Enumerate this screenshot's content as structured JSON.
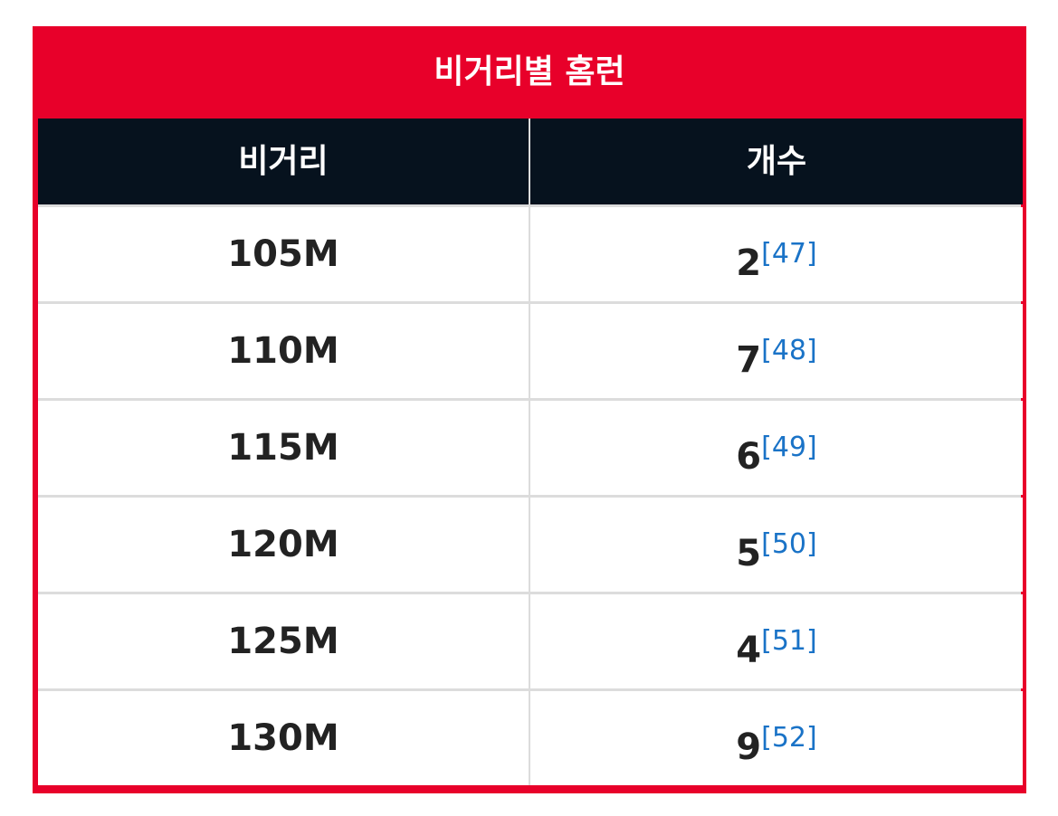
{
  "table": {
    "title": "비거리별 홈런",
    "headers": [
      "비거리",
      "개수"
    ],
    "rows": [
      {
        "distance": "105M",
        "count": "2",
        "ref": "[47]"
      },
      {
        "distance": "110M",
        "count": "7",
        "ref": "[48]"
      },
      {
        "distance": "115M",
        "count": "6",
        "ref": "[49]"
      },
      {
        "distance": "120M",
        "count": "5",
        "ref": "[50]"
      },
      {
        "distance": "125M",
        "count": "4",
        "ref": "[51]"
      },
      {
        "distance": "130M",
        "count": "9",
        "ref": "[52]"
      }
    ]
  },
  "colors": {
    "title_bg": "#e8002a",
    "header_bg": "#06121e",
    "ref_link": "#1a73c7"
  }
}
